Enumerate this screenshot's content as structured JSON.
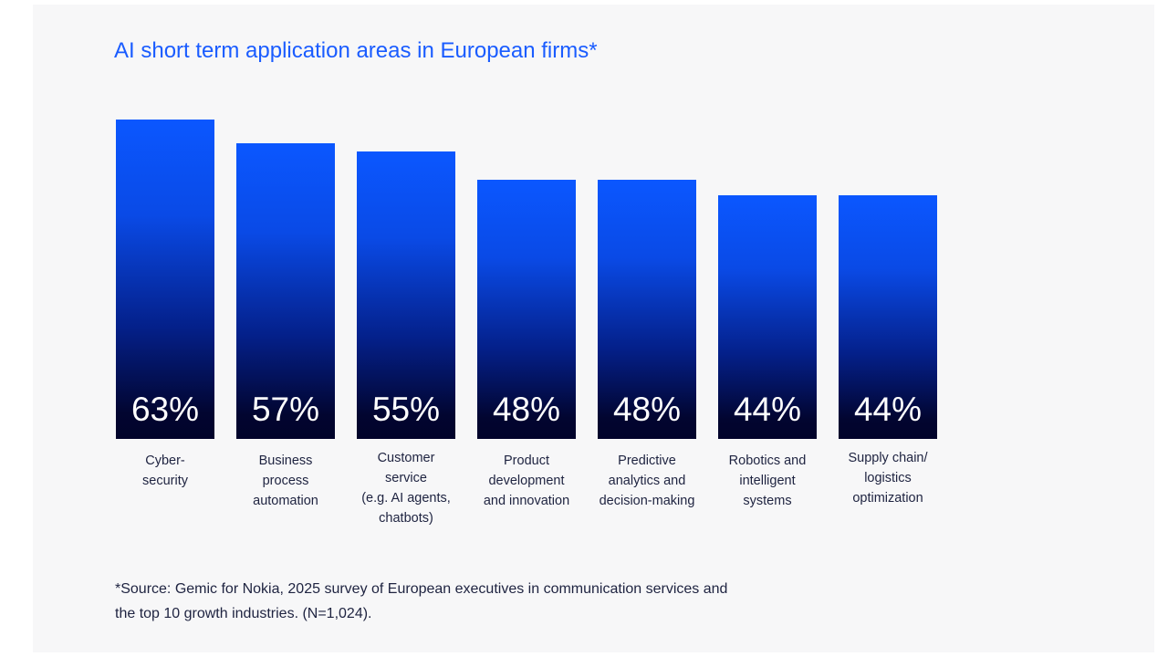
{
  "chart_data": {
    "type": "bar",
    "title": "AI short term application areas in European firms*",
    "categories": [
      "Cyber-\nsecurity",
      "Business\nprocess\nautomation",
      "Customer\nservice\n(e.g. AI agents,\nchatbots)",
      "Product\ndevelopment\nand innovation",
      "Predictive\nanalytics and\ndecision-making",
      "Robotics and\nintelligent\nsystems",
      "Supply chain/\nlogistics\noptimization"
    ],
    "values": [
      63,
      57,
      55,
      48,
      48,
      44,
      44
    ],
    "value_labels": [
      "63%",
      "57%",
      "55%",
      "48%",
      "48%",
      "44%",
      "44%"
    ],
    "unit": "%",
    "grid": false,
    "colors": {
      "bar_top": "#0b57ff",
      "bar_bottom": "#01032a",
      "title": "#1a5cff"
    }
  },
  "footnote": "*Source: Gemic for Nokia, 2025 survey of European executives in communication services and\nthe top 10 growth industries. (N=1,024)."
}
